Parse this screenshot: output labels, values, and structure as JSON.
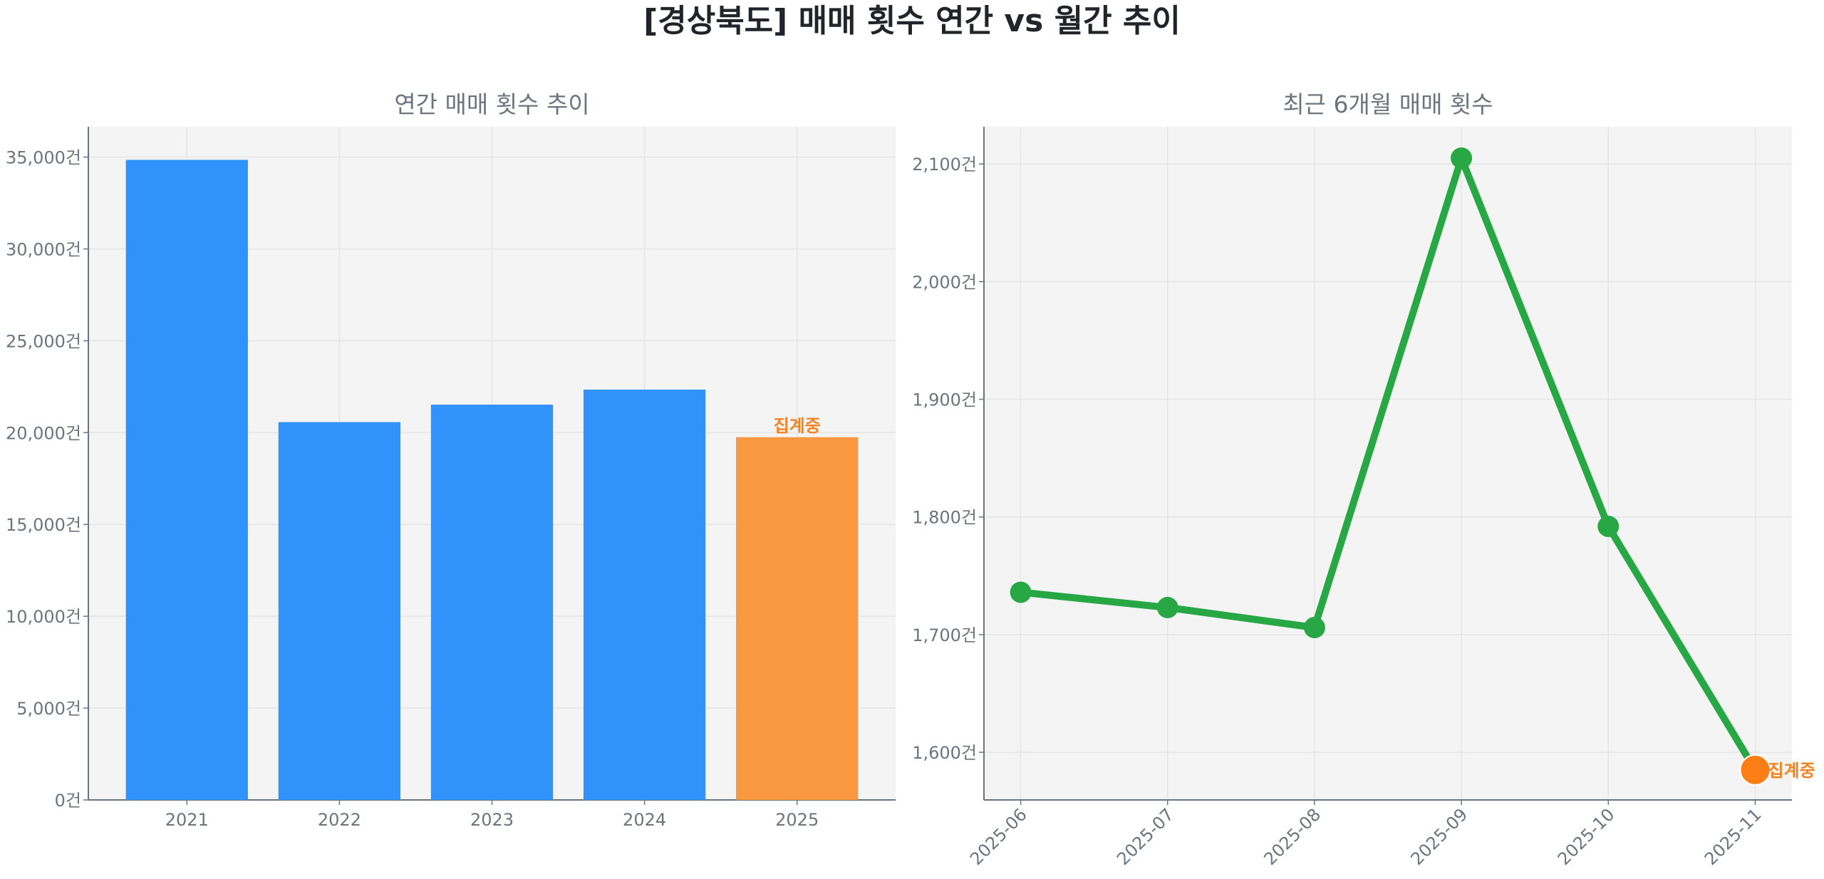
{
  "title": "[경상북도] 매매 횟수 연간 vs 월간 추이",
  "chart_data": [
    {
      "type": "bar",
      "title": "연간 매매 횟수 추이",
      "categories": [
        "2021",
        "2022",
        "2023",
        "2024",
        "2025"
      ],
      "values": [
        34850,
        20570,
        21520,
        22340,
        19750
      ],
      "bar_colors": [
        "#3093fb",
        "#3093fb",
        "#3093fb",
        "#3093fb",
        "#f99841"
      ],
      "annotations": [
        {
          "category": "2025",
          "text": "집계중"
        }
      ],
      "ylim": [
        0,
        36650
      ],
      "yticks": [
        0,
        5000,
        10000,
        15000,
        20000,
        25000,
        30000,
        35000
      ],
      "ytick_labels": [
        "0건",
        "5,000건",
        "10,000건",
        "15,000건",
        "20,000건",
        "25,000건",
        "30,000건",
        "35,000건"
      ],
      "grid": true
    },
    {
      "type": "line",
      "title": "최근 6개월 매매 횟수",
      "x": [
        "2025-06",
        "2025-07",
        "2025-08",
        "2025-09",
        "2025-10",
        "2025-11"
      ],
      "values": [
        1736,
        1723,
        1706,
        2105,
        1792,
        1585
      ],
      "line_color": "#28a745",
      "last_point_color": "#fd7e14",
      "annotations": [
        {
          "x": "2025-11",
          "text": "집계중"
        }
      ],
      "ylim": [
        1559.5,
        2131.6
      ],
      "yticks": [
        1600,
        1700,
        1800,
        1900,
        2000,
        2100
      ],
      "ytick_labels": [
        "1,600건",
        "1,700건",
        "1,800건",
        "1,900건",
        "2,000건",
        "2,100건"
      ],
      "xtick_rotation": 45,
      "grid": true
    }
  ]
}
